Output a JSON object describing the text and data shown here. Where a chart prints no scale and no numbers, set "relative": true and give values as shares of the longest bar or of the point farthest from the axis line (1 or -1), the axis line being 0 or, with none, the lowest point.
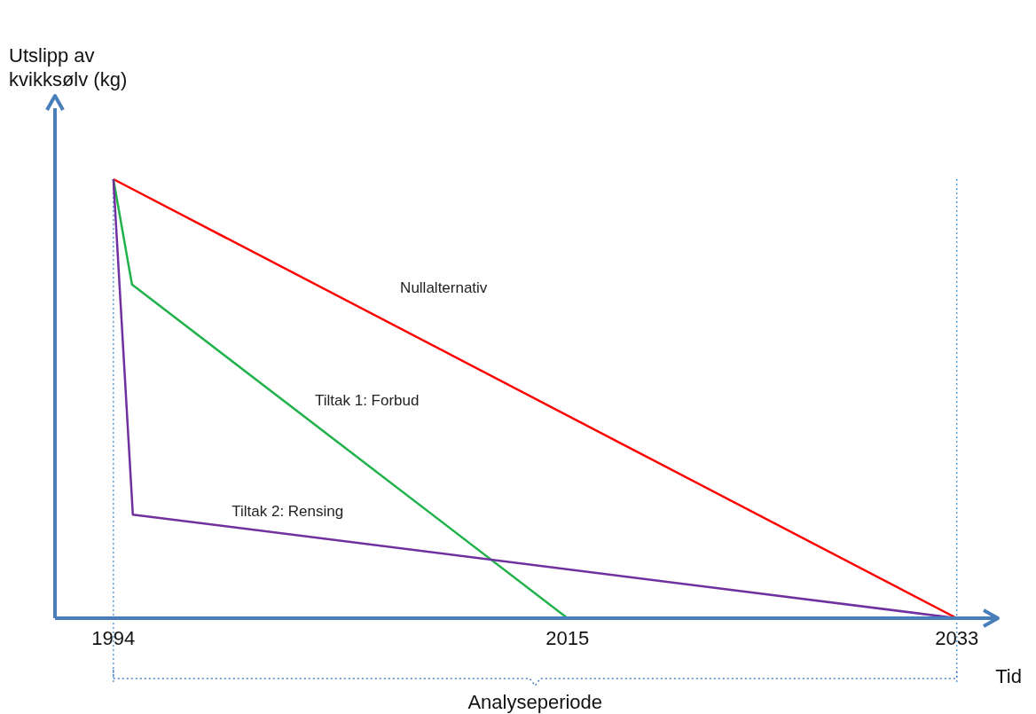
{
  "chart_data": {
    "type": "line",
    "relative": true,
    "ylabel": "Utslipp av kvikksølv (kg)",
    "xlabel": "Tid",
    "xlim": [
      1991.3,
      2034.9
    ],
    "xticks": [
      1994,
      2015,
      2033
    ],
    "grid": false,
    "legend": false,
    "marker": "none",
    "line_style": "solid",
    "series": [
      {
        "name": "Nullalternativ",
        "color": "#ff0000",
        "x": [
          1994,
          2033
        ],
        "values": [
          1,
          0
        ]
      },
      {
        "name": "Tiltak 1: Forbud",
        "color": "#21b24b",
        "x": [
          1994,
          1994.86,
          2015
        ],
        "values": [
          1,
          0.76,
          0
        ]
      },
      {
        "name": "Tiltak 2: Rensing",
        "color": "#7030a0",
        "x": [
          1994,
          1994.9,
          2033
        ],
        "values": [
          1,
          0.236,
          0
        ]
      }
    ],
    "ref_lines": [
      {
        "axis": "x",
        "value": 1994,
        "color": "#5b9bd5",
        "line_style": "dotted"
      },
      {
        "axis": "x",
        "value": 2033,
        "color": "#5b9bd5",
        "line_style": "dotted"
      }
    ],
    "annotations": [
      "Analyseperiode"
    ]
  }
}
